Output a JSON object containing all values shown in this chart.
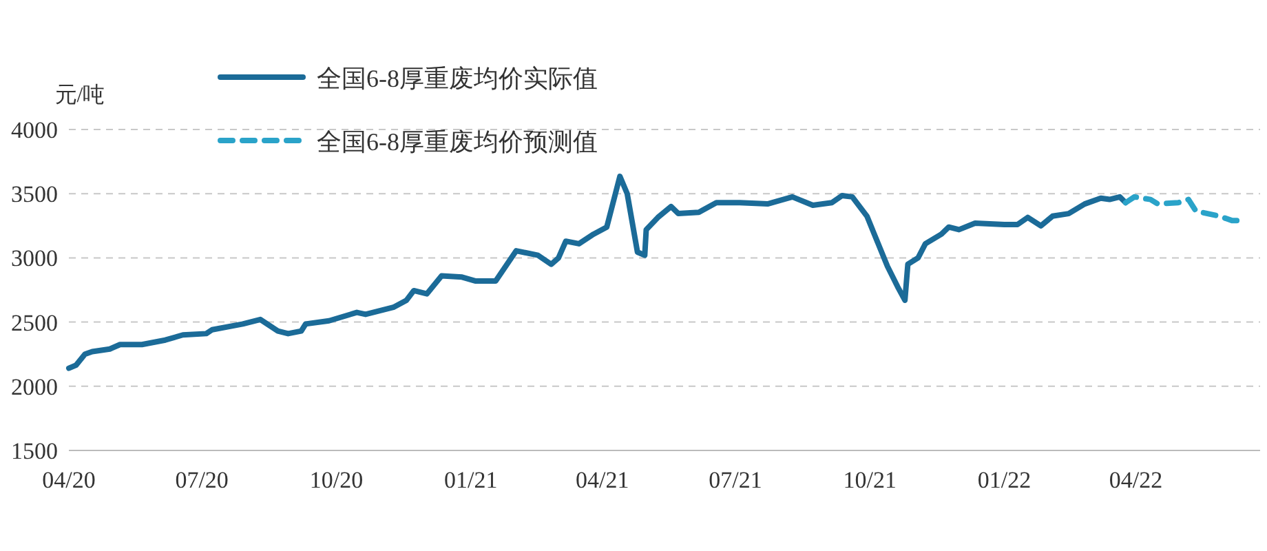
{
  "chart_data": {
    "type": "line",
    "ylabel": "元/吨",
    "ylim": [
      1500,
      4000
    ],
    "yticks": [
      1500,
      2000,
      2500,
      3000,
      3500,
      4000
    ],
    "xlim": [
      "2020-04-01",
      "2022-06-25"
    ],
    "xticks": [
      {
        "value": "2020-04-01",
        "label": "04/20"
      },
      {
        "value": "2020-07-01",
        "label": "07/20"
      },
      {
        "value": "2020-10-01",
        "label": "10/20"
      },
      {
        "value": "2021-01-01",
        "label": "01/21"
      },
      {
        "value": "2021-04-01",
        "label": "04/21"
      },
      {
        "value": "2021-07-01",
        "label": "07/21"
      },
      {
        "value": "2021-10-01",
        "label": "10/21"
      },
      {
        "value": "2022-01-01",
        "label": "01/22"
      },
      {
        "value": "2022-04-01",
        "label": "04/22"
      }
    ],
    "grid": "y",
    "legend": "top",
    "series": [
      {
        "name": "全国6-8厚重废均价实际值",
        "color": "#1b6b98",
        "line_style": "solid",
        "x": [
          "2020-04-01",
          "2020-04-06",
          "2020-04-12",
          "2020-04-17",
          "2020-04-29",
          "2020-05-06",
          "2020-05-21",
          "2020-06-06",
          "2020-06-18",
          "2020-07-04",
          "2020-07-08",
          "2020-07-29",
          "2020-08-10",
          "2020-08-22",
          "2020-08-29",
          "2020-09-07",
          "2020-09-10",
          "2020-09-26",
          "2020-10-15",
          "2020-10-21",
          "2020-11-09",
          "2020-11-18",
          "2020-11-23",
          "2020-12-02",
          "2020-12-12",
          "2020-12-26",
          "2021-01-04",
          "2021-01-18",
          "2021-02-01",
          "2021-02-16",
          "2021-02-25",
          "2021-03-02",
          "2021-03-07",
          "2021-03-16",
          "2021-03-26",
          "2021-04-04",
          "2021-04-13",
          "2021-04-18",
          "2021-04-25",
          "2021-04-30",
          "2021-05-01",
          "2021-05-09",
          "2021-05-18",
          "2021-05-23",
          "2021-06-06",
          "2021-06-18",
          "2021-07-04",
          "2021-07-23",
          "2021-08-09",
          "2021-08-23",
          "2021-09-05",
          "2021-09-12",
          "2021-09-19",
          "2021-09-29",
          "2021-10-13",
          "2021-10-20",
          "2021-10-25",
          "2021-10-27",
          "2021-11-03",
          "2021-11-08",
          "2021-11-19",
          "2021-11-24",
          "2021-12-01",
          "2021-12-12",
          "2022-01-01",
          "2022-01-10",
          "2022-01-17",
          "2022-01-26",
          "2022-02-03",
          "2022-02-14",
          "2022-02-25",
          "2022-03-08",
          "2022-03-14",
          "2022-03-21",
          "2022-03-25"
        ],
        "values": [
          2140,
          2165,
          2250,
          2270,
          2290,
          2325,
          2325,
          2360,
          2400,
          2410,
          2440,
          2485,
          2520,
          2430,
          2410,
          2430,
          2485,
          2510,
          2575,
          2560,
          2615,
          2670,
          2745,
          2720,
          2860,
          2850,
          2820,
          2820,
          3055,
          3020,
          2950,
          3000,
          3130,
          3110,
          3185,
          3240,
          3635,
          3500,
          3045,
          3020,
          3220,
          3315,
          3400,
          3345,
          3355,
          3430,
          3430,
          3420,
          3475,
          3410,
          3430,
          3485,
          3475,
          3325,
          2935,
          2775,
          2670,
          2950,
          3000,
          3110,
          3185,
          3240,
          3220,
          3270,
          3260,
          3260,
          3315,
          3250,
          3325,
          3345,
          3420,
          3465,
          3455,
          3475,
          3430
        ]
      },
      {
        "name": "全国6-8厚重废均价预测值",
        "color": "#2aa3c9",
        "line_style": "dashed",
        "x": [
          "2022-03-25",
          "2022-03-31",
          "2022-04-11",
          "2022-04-16",
          "2022-04-30",
          "2022-05-07",
          "2022-05-12",
          "2022-05-28",
          "2022-06-06",
          "2022-06-14"
        ],
        "values": [
          3430,
          3475,
          3455,
          3420,
          3430,
          3455,
          3365,
          3325,
          3290,
          3290
        ]
      }
    ]
  }
}
